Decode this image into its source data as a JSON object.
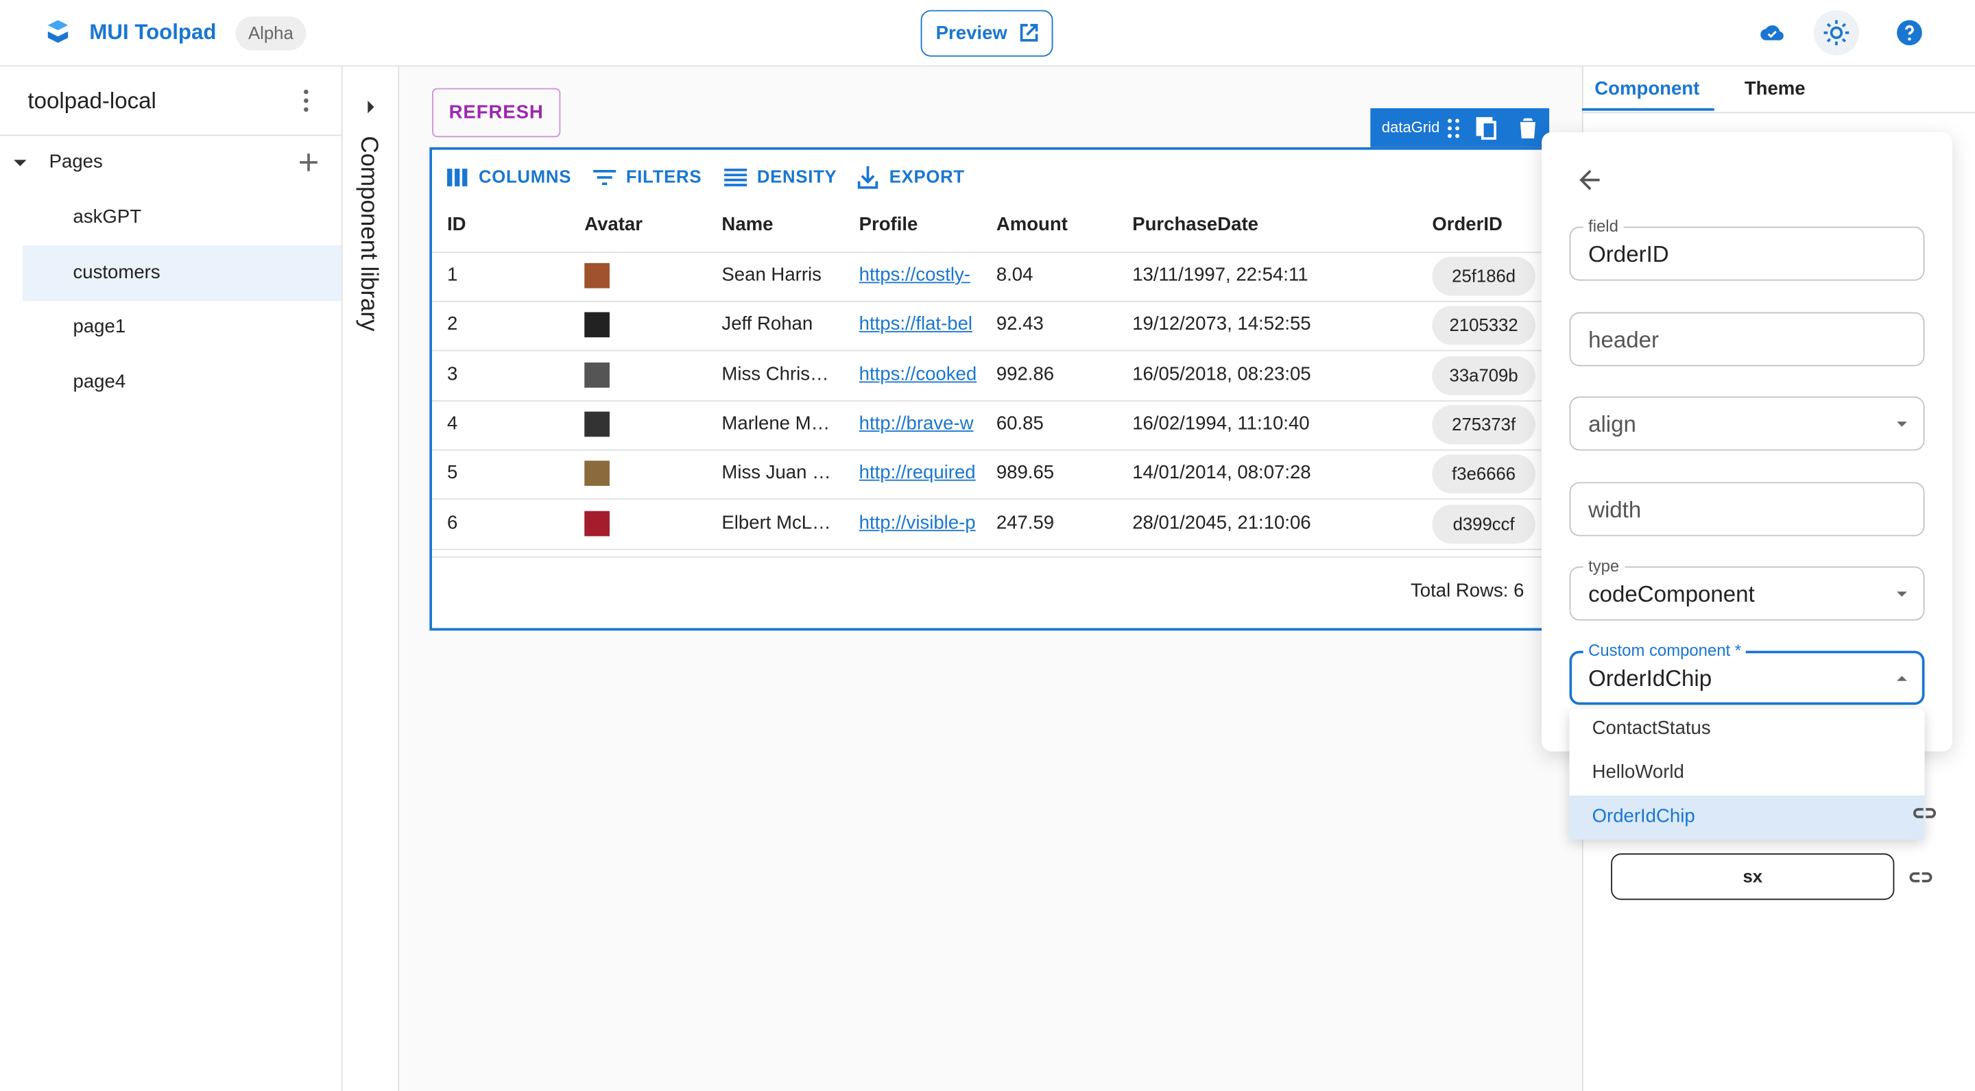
{
  "header": {
    "brand": "MUI Toolpad",
    "badge": "Alpha",
    "preview": "Preview"
  },
  "sidebar": {
    "project": "toolpad-local",
    "section": "Pages",
    "pages": [
      "askGPT",
      "customers",
      "page1",
      "page4"
    ]
  },
  "component_library": "Component library",
  "canvas": {
    "button": "REFRESH",
    "tag": "dataGrid",
    "toolbar": [
      "COLUMNS",
      "FILTERS",
      "DENSITY",
      "EXPORT"
    ],
    "columns": [
      "ID",
      "Avatar",
      "Name",
      "Profile",
      "Amount",
      "PurchaseDate",
      "OrderID"
    ],
    "rows": [
      [
        1,
        "Sean Harris",
        "https://costly-",
        8.04,
        "13/11/1997, 22:54:11",
        "25f186d"
      ],
      [
        2,
        "Jeff Rohan",
        "https://flat-bel",
        92.43,
        "19/12/2073, 14:52:55",
        "2105332"
      ],
      [
        3,
        "Miss Chris…",
        "https://cooked",
        992.86,
        "16/05/2018, 08:23:05",
        "33a709b"
      ],
      [
        4,
        "Marlene M…",
        "http://brave-w",
        60.85,
        "16/02/1994, 11:10:40",
        "275373f"
      ],
      [
        5,
        "Miss Juan …",
        "http://required",
        989.65,
        "14/01/2014, 08:07:28",
        "f3e6666"
      ],
      [
        6,
        "Elbert McL…",
        "http://visible-p",
        247.59,
        "28/01/2045, 21:10:06",
        "d399ccf"
      ]
    ],
    "footer": "Total Rows: 6"
  },
  "panel": {
    "tabs": [
      "Component",
      "Theme"
    ],
    "fields": [
      {
        "label": "field",
        "value": "OrderID"
      },
      {
        "placeholder": "header"
      },
      {
        "placeholder": "align"
      },
      {
        "placeholder": "width"
      },
      {
        "label": "type",
        "value": "codeComponent"
      },
      {
        "label": "Custom component *",
        "value": "OrderIdChip"
      }
    ],
    "options": [
      "ContactStatus",
      "HelloWorld",
      "OrderIdChip"
    ],
    "sx": "sx"
  }
}
